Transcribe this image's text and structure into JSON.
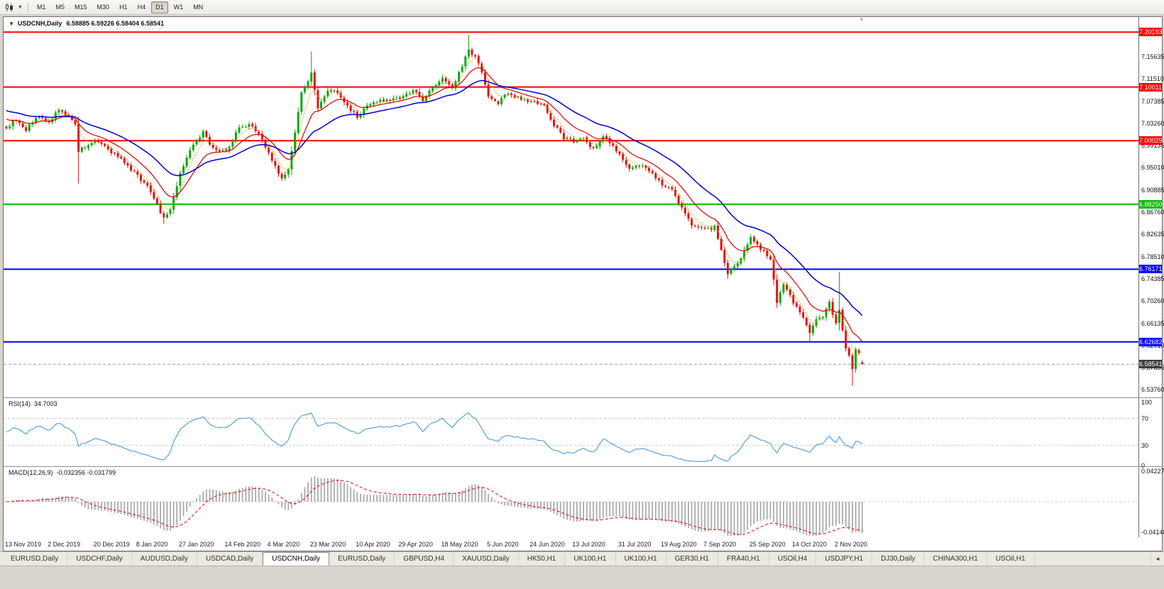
{
  "toolbar": {
    "chart_type_icon": "candlestick-chart-icon",
    "dropdown_icon": "chevron-down-icon",
    "timeframes": [
      "M1",
      "M5",
      "M15",
      "M30",
      "H1",
      "H4",
      "D1",
      "W1",
      "MN"
    ],
    "active_timeframe": "D1"
  },
  "chart": {
    "title": "USDCNH,Daily",
    "ohlc_text": "6.58885 6.59226 6.58404 6.58541",
    "collapse_arrow": "▼"
  },
  "rsi": {
    "label": "RSI(14)",
    "value": "34.7003"
  },
  "macd": {
    "label": "MACD(12,26,9)",
    "values": "-0.032356 -0.031799"
  },
  "tabs": {
    "items": [
      "EURUSD,Daily",
      "USDCHF,Daily",
      "AUDUSD,Daily",
      "USDCAD,Daily",
      "USDCNH,Daily",
      "EURUSD,Daily",
      "GBPUSD,H4",
      "XAUUSD,Daily",
      "HK50,H1",
      "UK100,H1",
      "UK100,H1",
      "GER30,H1",
      "FRA40,H1",
      "USOil,H4",
      "USDJPY,H1",
      "DJ30,Daily",
      "CHINA300,H1",
      "USOil,H1"
    ],
    "active_index": 4,
    "scroll_left_glyph": "◄"
  },
  "chart_data": {
    "type": "candlestick",
    "symbol": "USDCNH",
    "timeframe": "Daily",
    "last_candle": {
      "open": 6.58885,
      "high": 6.59226,
      "low": 6.58404,
      "close": 6.58541
    },
    "current_price": 6.58541,
    "current_price_label": "6.58541",
    "candle_count": 262,
    "price_range_est": [
      6.525,
      7.23
    ],
    "price_ticks": [
      "7.15635",
      "7.11510",
      "7.07385",
      "7.03260",
      "6.99135",
      "6.95010",
      "6.90885",
      "6.86760",
      "6.82635",
      "6.78510",
      "6.74385",
      "6.70260",
      "6.66135",
      "6.62010",
      "6.57885",
      "6.53760"
    ],
    "horizontal_levels": [
      {
        "price": 7.20193,
        "label": "7.20193",
        "color": "#FF0000"
      },
      {
        "price": 7.10011,
        "label": "7.10011",
        "color": "#FF0000"
      },
      {
        "price": 7.00029,
        "label": "7.00029",
        "color": "#FF0000"
      },
      {
        "price": 6.8825,
        "label": "6.88250",
        "color": "#00BB00"
      },
      {
        "price": 6.76171,
        "label": "6.76171",
        "color": "#0000FF"
      },
      {
        "price": 6.62682,
        "label": "6.62682",
        "color": "#0000FF"
      }
    ],
    "x_axis_dates": [
      "13 Nov 2019",
      "2 Dec 2019",
      "20 Dec 2019",
      "8 Jan 2020",
      "27 Jan 2020",
      "14 Feb 2020",
      "4 Mar 2020",
      "23 Mar 2020",
      "10 Apr 2020",
      "29 Apr 2020",
      "18 May 2020",
      "5 Jun 2020",
      "24 Jun 2020",
      "13 Jul 2020",
      "31 Jul 2020",
      "19 Aug 2020",
      "7 Sep 2020",
      "25 Sep 2020",
      "14 Oct 2020",
      "2 Nov 2020"
    ],
    "x_label_indices": [
      0,
      13,
      27,
      40,
      53,
      67,
      80,
      93,
      107,
      120,
      133,
      147,
      160,
      173,
      187,
      200,
      213,
      227,
      240,
      253
    ],
    "close_anchors": [
      [
        0,
        7.025
      ],
      [
        3,
        7.04
      ],
      [
        6,
        7.02
      ],
      [
        9,
        7.045
      ],
      [
        13,
        7.035
      ],
      [
        16,
        7.06
      ],
      [
        19,
        7.045
      ],
      [
        21,
        7.03
      ],
      [
        22,
        6.98
      ],
      [
        24,
        6.99
      ],
      [
        27,
        7.0
      ],
      [
        30,
        6.99
      ],
      [
        33,
        6.975
      ],
      [
        36,
        6.96
      ],
      [
        40,
        6.935
      ],
      [
        43,
        6.915
      ],
      [
        45,
        6.895
      ],
      [
        48,
        6.855
      ],
      [
        50,
        6.87
      ],
      [
        53,
        6.94
      ],
      [
        56,
        6.985
      ],
      [
        60,
        7.015
      ],
      [
        63,
        6.985
      ],
      [
        67,
        6.98
      ],
      [
        71,
        7.025
      ],
      [
        75,
        7.03
      ],
      [
        78,
        7.0
      ],
      [
        81,
        6.965
      ],
      [
        84,
        6.93
      ],
      [
        86,
        6.95
      ],
      [
        88,
        7.015
      ],
      [
        90,
        7.09
      ],
      [
        93,
        7.125
      ],
      [
        95,
        7.06
      ],
      [
        98,
        7.095
      ],
      [
        101,
        7.09
      ],
      [
        104,
        7.065
      ],
      [
        107,
        7.045
      ],
      [
        111,
        7.07
      ],
      [
        115,
        7.075
      ],
      [
        120,
        7.08
      ],
      [
        124,
        7.095
      ],
      [
        127,
        7.075
      ],
      [
        130,
        7.1
      ],
      [
        133,
        7.115
      ],
      [
        136,
        7.1
      ],
      [
        139,
        7.14
      ],
      [
        141,
        7.17
      ],
      [
        143,
        7.155
      ],
      [
        145,
        7.13
      ],
      [
        147,
        7.085
      ],
      [
        150,
        7.07
      ],
      [
        153,
        7.09
      ],
      [
        157,
        7.075
      ],
      [
        160,
        7.075
      ],
      [
        164,
        7.065
      ],
      [
        167,
        7.03
      ],
      [
        170,
        7.005
      ],
      [
        173,
        7.0
      ],
      [
        176,
        7.005
      ],
      [
        179,
        6.985
      ],
      [
        182,
        7.01
      ],
      [
        185,
        6.99
      ],
      [
        187,
        6.975
      ],
      [
        190,
        6.95
      ],
      [
        193,
        6.955
      ],
      [
        196,
        6.945
      ],
      [
        200,
        6.92
      ],
      [
        203,
        6.91
      ],
      [
        206,
        6.875
      ],
      [
        209,
        6.845
      ],
      [
        213,
        6.835
      ],
      [
        216,
        6.84
      ],
      [
        220,
        6.755
      ],
      [
        223,
        6.77
      ],
      [
        227,
        6.82
      ],
      [
        230,
        6.8
      ],
      [
        233,
        6.78
      ],
      [
        234,
        6.745
      ],
      [
        235,
        6.7
      ],
      [
        237,
        6.735
      ],
      [
        240,
        6.7
      ],
      [
        243,
        6.67
      ],
      [
        245,
        6.645
      ],
      [
        247,
        6.67
      ],
      [
        249,
        6.675
      ],
      [
        251,
        6.7
      ],
      [
        253,
        6.66
      ],
      [
        254,
        6.685
      ],
      [
        255,
        6.65
      ],
      [
        256,
        6.615
      ],
      [
        257,
        6.6
      ],
      [
        258,
        6.575
      ],
      [
        259,
        6.615
      ],
      [
        260,
        6.605
      ],
      [
        261,
        6.58541
      ]
    ],
    "wick_extremes": [
      {
        "i": 22,
        "low": 6.921
      },
      {
        "i": 48,
        "low": 6.846
      },
      {
        "i": 93,
        "high": 7.166
      },
      {
        "i": 141,
        "high": 7.1965
      },
      {
        "i": 220,
        "low": 6.744
      },
      {
        "i": 245,
        "low": 6.627
      },
      {
        "i": 254,
        "high": 6.757,
        "low": 6.648
      },
      {
        "i": 258,
        "low": 6.545
      }
    ],
    "colors": {
      "up": "#09A809",
      "down": "#E31212",
      "current_line": "#999999",
      "current_tag": "#3C3C3C"
    },
    "moving_averages": [
      {
        "period": 5,
        "type": "ema",
        "color": "#C9A602",
        "style": "dotted"
      },
      {
        "period": 12,
        "type": "ema",
        "color": "#DD0000",
        "style": "solid"
      },
      {
        "period": 30,
        "type": "ema",
        "color": "#0000D4",
        "style": "solid"
      }
    ],
    "indicators": {
      "rsi": {
        "label": "RSI(14)",
        "value": 34.7003,
        "levels": [
          70,
          30
        ],
        "axis": [
          100,
          70,
          30,
          0
        ],
        "color": "#4C9CD4"
      },
      "macd": {
        "label": "MACD(12,26,9)",
        "macd": -0.032356,
        "signal": -0.031799,
        "axis_max_label": "0.042275",
        "axis_min_label": "-0.041485",
        "axis_max": 0.042275,
        "axis_min": -0.041485,
        "histogram_color": "#ABABAB",
        "signal_color": "#E00000"
      }
    }
  }
}
